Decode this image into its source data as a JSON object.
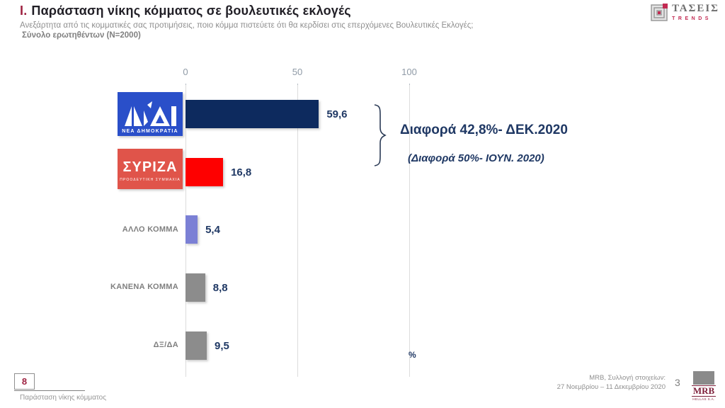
{
  "header": {
    "title_prefix": "Ι.",
    "title": "Παράσταση νίκης κόμματος σε βουλευτικές εκλογές",
    "subtitle": "Ανεξάρτητα από τις κομματικές σας προτιμήσεις, ποιο κόμμα πιστεύετε ότι θα κερδίσει στις επερχόμενες Βουλευτικές Εκλογές;",
    "sample_note": "Σύνολο ερωτηθέντων (N=2000)"
  },
  "trends_logo": {
    "name": "ΤΑΣΕΙΣ",
    "sub": "TRENDS"
  },
  "chart_data": {
    "type": "bar",
    "orientation": "horizontal",
    "title": "Παράσταση νίκης κόμματος σε βουλευτικές εκλογές",
    "categories": [
      "ΝΕΑ ΔΗΜΟΚΡΑΤΙΑ",
      "ΣΥΡΙΖΑ",
      "ΑΛΛΟ ΚΟΜΜΑ",
      "ΚΑΝΕΝΑ ΚΟΜΜΑ",
      "ΔΞ/ΔΑ"
    ],
    "values": [
      59.6,
      16.8,
      5.4,
      8.8,
      9.5
    ],
    "value_labels": [
      "59,6",
      "16,8",
      "5,4",
      "8,8",
      "9,5"
    ],
    "bar_colors": [
      "#0d2a5e",
      "#fe0000",
      "#7b80d5",
      "#8c8c8c",
      "#8c8c8c"
    ],
    "x_ticks": [
      "0",
      "50",
      "100"
    ],
    "xlim": [
      0,
      100
    ],
    "unit": "%",
    "grid": true,
    "legend": false
  },
  "nd_logo": {
    "caption": "ΝΕΑ ΔΗΜΟΚΡΑΤΙΑ"
  },
  "syriza_logo": {
    "name": "ΣΥΡΙΖΑ",
    "caption": "ΠΡΟΟΔΕΥΤΙΚΗ ΣΥΜΜΑΧΙΑ"
  },
  "annotation": {
    "line1": "Διαφορά 42,8%- ΔΕΚ.2020",
    "line2": "(Διαφορά 50%- ΙΟΥΝ. 2020)"
  },
  "percent_sign": "%",
  "footer": {
    "page_box": "8",
    "footnote": "Παράσταση νίκης κόμματος",
    "source_line1": "MRB, Συλλογή στοιχείων:",
    "source_line2": "27 Νοεμβρίου – 11 Δεκεμβρίου 2020",
    "page_number": "3",
    "mrb_name": "MRB",
    "mrb_sub": "HELLAS S.A."
  },
  "colors": {
    "accent_red": "#9e2241",
    "navy_text": "#1f3864",
    "nd_bar": "#0d2a5e",
    "syriza_bar": "#fe0000",
    "other_bar": "#7b80d5",
    "gray_bar": "#8c8c8c",
    "trends_red": "#c22a52"
  }
}
